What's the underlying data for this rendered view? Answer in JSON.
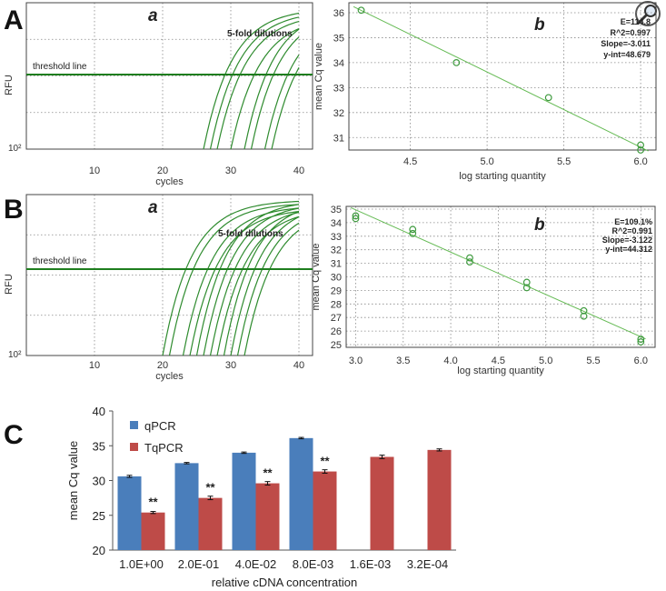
{
  "panel_labels": {
    "A": "A",
    "B": "B",
    "C": "C"
  },
  "subpanel_labels": {
    "a": "a",
    "b": "b"
  },
  "chart_data": [
    {
      "id": "A-a",
      "type": "line",
      "xlabel": "cycles",
      "ylabel": "RFU",
      "x_ticks": [
        "10",
        "20",
        "30",
        "40"
      ],
      "y_tick": "10²",
      "threshold_label": "threshold line",
      "annotation": "5-fold dilutions",
      "xlim": [
        0,
        42
      ],
      "grid": true,
      "curves": {
        "color": "#2e8b2e",
        "onset_cycles": [
          26,
          27,
          28,
          30,
          32,
          33,
          35,
          36
        ]
      }
    },
    {
      "id": "A-b",
      "type": "scatter",
      "xlabel": "log starting quantity",
      "ylabel": "mean Cq value",
      "xlim": [
        4.1,
        6.1
      ],
      "ylim": [
        30.5,
        36.4
      ],
      "x_ticks": [
        4.5,
        5.0,
        5.5,
        6.0
      ],
      "y_ticks": [
        31,
        32,
        33,
        34,
        35,
        36
      ],
      "points": [
        [
          4.18,
          36.1
        ],
        [
          4.8,
          34.0
        ],
        [
          5.4,
          32.6
        ],
        [
          6.0,
          30.7
        ],
        [
          6.0,
          30.5
        ]
      ],
      "stats": [
        "E=114.8",
        "R^2=0.997",
        "Slope=-3.011",
        "y-int=48.679"
      ],
      "regression": {
        "slope": -3.011,
        "intercept": 48.679
      },
      "grid": true
    },
    {
      "id": "B-a",
      "type": "line",
      "xlabel": "cycles",
      "ylabel": "RFU",
      "x_ticks": [
        "10",
        "20",
        "30",
        "40"
      ],
      "y_tick": "10²",
      "threshold_label": "threshold line",
      "annotation": "5-fold dilutions",
      "xlim": [
        0,
        42
      ],
      "grid": true,
      "curves": {
        "color": "#2e8b2e",
        "onset_cycles": [
          20,
          21,
          23,
          24,
          25,
          26,
          27,
          28,
          29,
          30,
          31,
          32
        ]
      }
    },
    {
      "id": "B-b",
      "type": "scatter",
      "xlabel": "log starting quantity",
      "ylabel": "mean Cq value",
      "xlim": [
        2.9,
        6.15
      ],
      "ylim": [
        24.8,
        35.2
      ],
      "x_ticks": [
        3.0,
        3.5,
        4.0,
        4.5,
        5.0,
        5.5,
        6.0
      ],
      "y_ticks": [
        25,
        26,
        27,
        28,
        29,
        30,
        31,
        32,
        33,
        34,
        35
      ],
      "points": [
        [
          3.0,
          34.5
        ],
        [
          3.0,
          34.3
        ],
        [
          3.6,
          33.5
        ],
        [
          3.6,
          33.2
        ],
        [
          4.2,
          31.4
        ],
        [
          4.2,
          31.1
        ],
        [
          4.8,
          29.6
        ],
        [
          4.8,
          29.2
        ],
        [
          5.4,
          27.5
        ],
        [
          5.4,
          27.1
        ],
        [
          6.0,
          25.4
        ],
        [
          6.0,
          25.2
        ]
      ],
      "stats": [
        "E=109.1%",
        "R^2=0.991",
        "Slope=-3.122",
        "y-int=44.312"
      ],
      "regression": {
        "slope": -3.122,
        "intercept": 44.312
      },
      "grid": true
    },
    {
      "id": "C",
      "type": "bar",
      "xlabel": "relative cDNA concentration",
      "ylabel": "mean Cq value",
      "ylim": [
        20,
        40
      ],
      "y_ticks": [
        20,
        25,
        30,
        35,
        40
      ],
      "categories": [
        "1.0E+00",
        "2.0E-01",
        "4.0E-02",
        "8.0E-03",
        "1.6E-03",
        "3.2E-04"
      ],
      "series": [
        {
          "name": "qPCR",
          "color": "#4a7ebb",
          "values": [
            30.6,
            32.5,
            34.0,
            36.1,
            null,
            null
          ],
          "errors": [
            0.15,
            0.1,
            0.1,
            0.1,
            null,
            null
          ]
        },
        {
          "name": "TqPCR",
          "color": "#be4b48",
          "values": [
            25.4,
            27.5,
            29.6,
            31.3,
            33.4,
            34.4
          ],
          "errors": [
            0.15,
            0.25,
            0.25,
            0.25,
            0.25,
            0.15
          ]
        }
      ],
      "significance": [
        "**",
        "**",
        "**",
        "**",
        "",
        ""
      ],
      "legend_position": "top-left"
    }
  ]
}
